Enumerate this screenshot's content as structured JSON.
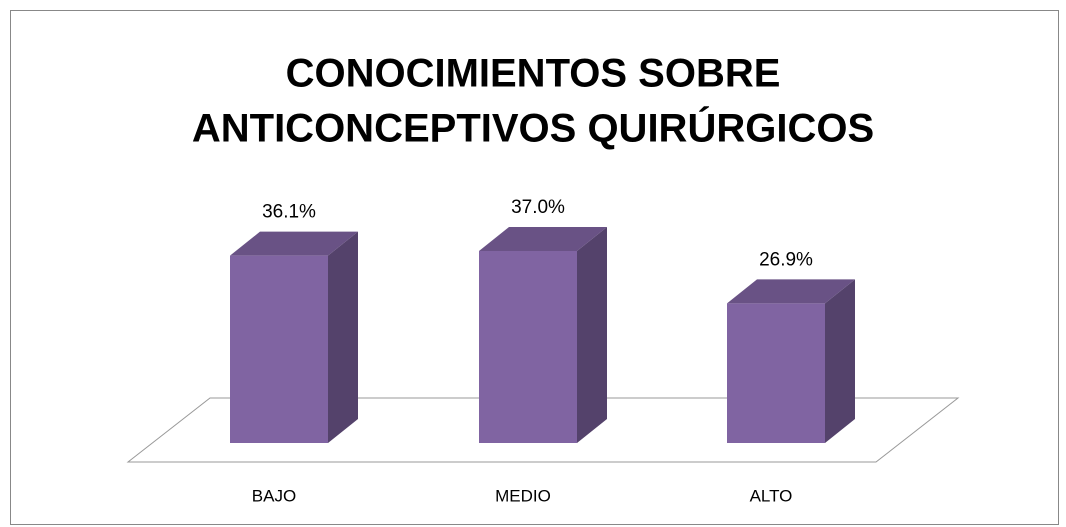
{
  "chart_data": {
    "type": "bar3d",
    "title": [
      "CONOCIMIENTOS SOBRE",
      "ANTICONCEPTIVOS QUIRÚRGICOS"
    ],
    "categories": [
      "BAJO",
      "MEDIO",
      "ALTO"
    ],
    "values": [
      36.1,
      37.0,
      26.9
    ],
    "value_labels": [
      "36.1%",
      "37.0%",
      "26.9%"
    ],
    "color": "#8064a2"
  }
}
